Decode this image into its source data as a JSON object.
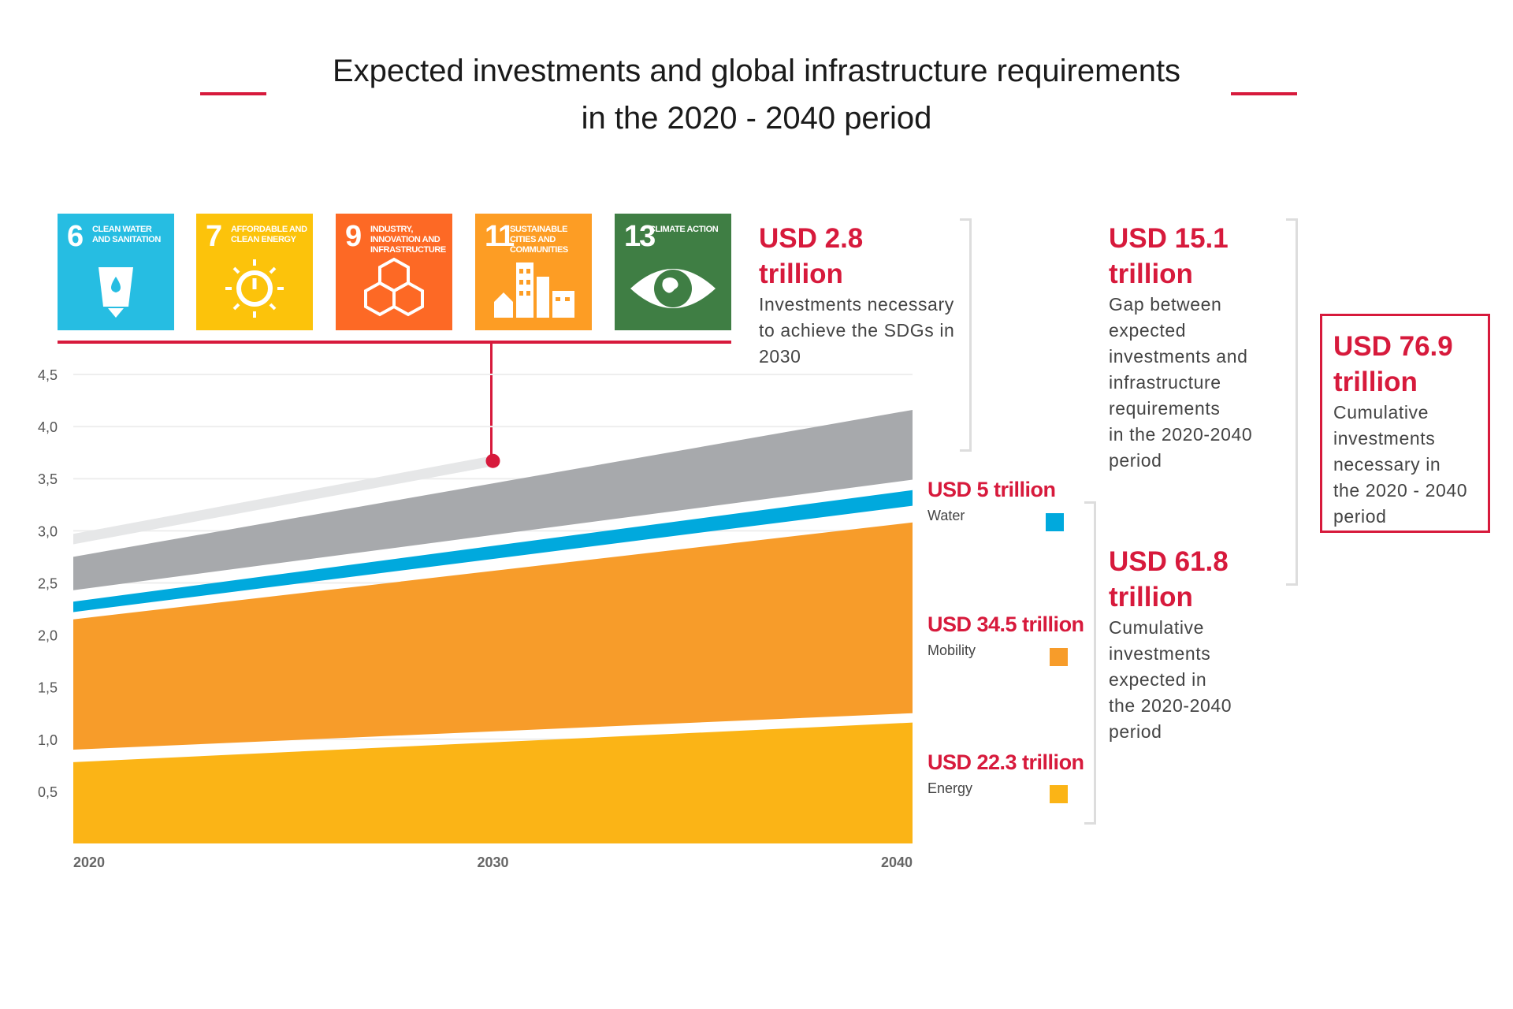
{
  "title": {
    "line1": "Expected investments and global infrastructure requirements",
    "line2": "in the 2020 - 2040 period"
  },
  "sdg_icons": [
    {
      "number": "6",
      "label": "CLEAN WATER AND SANITATION",
      "color": "#26bde2",
      "icon": "water-glass-icon"
    },
    {
      "number": "7",
      "label": "AFFORDABLE AND CLEAN ENERGY",
      "color": "#fcc30b",
      "icon": "sun-power-icon"
    },
    {
      "number": "9",
      "label": "INDUSTRY, INNOVATION AND INFRASTRUCTURE",
      "color": "#fd6925",
      "icon": "cubes-icon"
    },
    {
      "number": "11",
      "label": "SUSTAINABLE CITIES AND COMMUNITIES",
      "color": "#fd9d24",
      "icon": "city-buildings-icon"
    },
    {
      "number": "13",
      "label": "CLIMATE ACTION",
      "color": "#3f7e44",
      "icon": "eye-globe-icon"
    }
  ],
  "annotations": {
    "sdg_gap": {
      "value": "USD 2.8 trillion",
      "value_line1": "USD 2.8",
      "value_line2": "trillion",
      "desc": [
        "Investments necessary",
        "to achieve the SDGs in",
        "2030"
      ]
    },
    "gap": {
      "value_line1": "USD 15.1",
      "value_line2": "trillion",
      "desc": [
        "Gap between",
        "expected",
        "investments and",
        "infrastructure",
        "requirements",
        "in the 2020-2040",
        "period"
      ]
    },
    "expected": {
      "value_line1": "USD 61.8",
      "value_line2": "trillion",
      "desc": [
        "Cumulative",
        "investments",
        "expected in",
        "the 2020-2040",
        "period"
      ]
    },
    "total": {
      "value_line1": "USD 76.9",
      "value_line2": "trillion",
      "desc": [
        "Cumulative",
        "investments",
        "necessary in",
        "the 2020 - 2040",
        "period"
      ]
    }
  },
  "categories": [
    {
      "value": "USD 5 trillion",
      "name": "Water",
      "color": "#00a9dd"
    },
    {
      "value": "USD 34.5 trillion",
      "name": "Mobility",
      "color": "#f79c2a"
    },
    {
      "value": "USD 22.3 trillion",
      "name": "Energy",
      "color": "#fbb416"
    }
  ],
  "colors": {
    "accent_red": "#d71a3c",
    "gap_gray": "#a7a9ac",
    "sdg_light": "#e6e7e8",
    "grid": "#eeeeee"
  },
  "chart_data": {
    "type": "area",
    "x": [
      2020,
      2040
    ],
    "x_ticks": [
      "2020",
      "2030",
      "2040"
    ],
    "y_ticks": [
      "0,5",
      "1,0",
      "1,5",
      "2,0",
      "2,5",
      "3,0",
      "3,5",
      "4,0",
      "4,5"
    ],
    "ylim": [
      0,
      4.5
    ],
    "grid": true,
    "series": [
      {
        "name": "Energy",
        "color": "#fbb416",
        "lower": [
          0.0,
          0.0
        ],
        "upper": [
          0.78,
          1.16
        ]
      },
      {
        "name": "Mobility",
        "color": "#f79c2a",
        "lower": [
          0.9,
          1.25
        ],
        "upper": [
          2.15,
          3.08
        ]
      },
      {
        "name": "Water",
        "color": "#00a9dd",
        "lower": [
          2.22,
          3.24
        ],
        "upper": [
          2.32,
          3.39
        ]
      },
      {
        "color": "#a7a9ac",
        "lower": [
          2.43,
          3.49
        ],
        "upper": [
          2.75,
          4.16
        ]
      },
      {
        "color": "#e6e7e8",
        "lower": [
          2.87,
          null
        ],
        "upper": [
          2.97,
          null
        ],
        "x_end": 2030,
        "lower_end": 3.62,
        "upper_end": 3.72
      }
    ],
    "marker": {
      "x": 2030,
      "y": 3.67
    }
  }
}
